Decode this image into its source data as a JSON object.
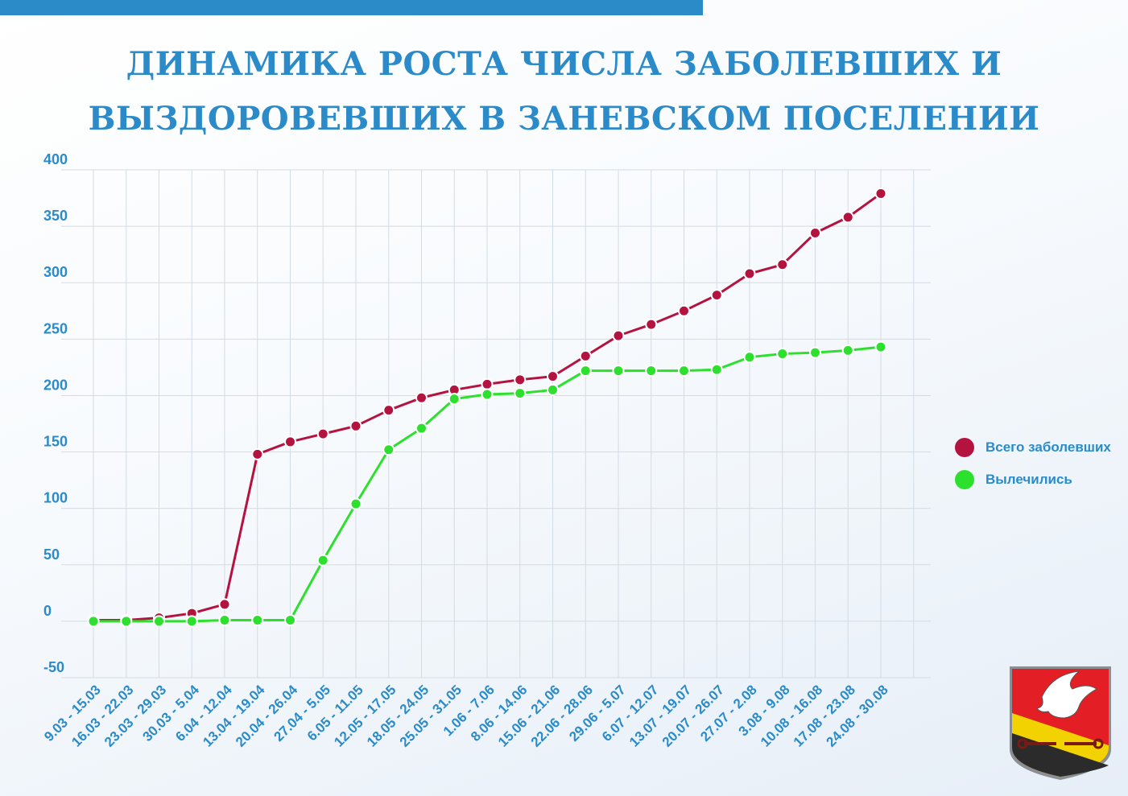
{
  "title": {
    "line1": "ДИНАМИКА РОСТА ЧИСЛА ЗАБОЛЕВШИХ И",
    "line2": "ВЫЗДОРОВЕВШИХ В ЗАНЕВСКОМ ПОСЕЛЕНИИ"
  },
  "colors": {
    "accent": "#2b8bc9",
    "sick": "#b5133f",
    "recovered": "#2ee02e"
  },
  "legend": {
    "sick": "Всего заболевших",
    "recovered": "Вылечились"
  },
  "chart_data": {
    "type": "line",
    "title": "ДИНАМИКА РОСТА ЧИСЛА ЗАБОЛЕВШИХ И ВЫЗДОРОВЕВШИХ В ЗАНЕВСКОМ ПОСЕЛЕНИИ",
    "xlabel": "",
    "ylabel": "",
    "ylim": [
      -50,
      400
    ],
    "yticks": [
      400,
      350,
      300,
      250,
      200,
      150,
      100,
      50,
      0,
      -50
    ],
    "grid": true,
    "legend_position": "right",
    "categories": [
      "9.03 - 15.03",
      "16.03 - 22.03",
      "23.03 - 29.03",
      "30.03 - 5.04",
      "6.04 - 12.04",
      "13.04 - 19.04",
      "20.04 - 26.04",
      "27.04 - 5.05",
      "6.05 - 11.05",
      "12.05 - 17.05",
      "18.05 - 24.05",
      "25.05  - 31.05",
      "1.06 - 7.06",
      "8.06 - 14.06",
      "15.06 - 21.06",
      "22.06 - 28.06",
      "29.06 - 5.07",
      "6.07 - 12.07",
      "13.07 - 19.07",
      "20.07 - 26.07",
      "27.07 - 2.08",
      "3.08 - 9.08",
      "10.08 - 16.08",
      "17.08 - 23.08",
      "24.08 - 30.08"
    ],
    "series": [
      {
        "name": "Всего заболевших",
        "color": "#b5133f",
        "values": [
          1,
          1,
          3,
          7,
          15,
          148,
          159,
          166,
          173,
          187,
          198,
          205,
          210,
          214,
          217,
          235,
          253,
          263,
          275,
          289,
          308,
          316,
          344,
          358,
          379
        ]
      },
      {
        "name": "Вылечились",
        "color": "#2ee02e",
        "values": [
          0,
          0,
          0,
          0,
          1,
          1,
          1,
          54,
          104,
          152,
          171,
          197,
          201,
          202,
          205,
          222,
          222,
          222,
          222,
          223,
          234,
          237,
          238,
          240,
          243
        ]
      }
    ]
  }
}
